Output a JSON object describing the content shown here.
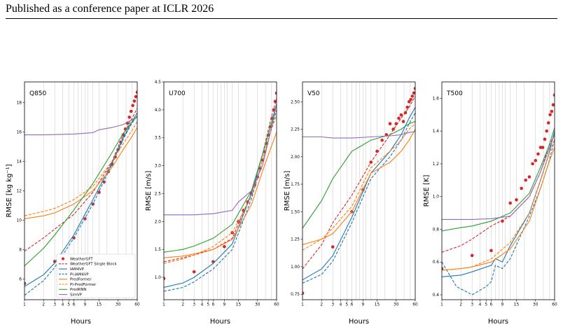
{
  "page": {
    "header": "Published as a conference paper at ICLR 2026"
  },
  "legend_entries": [
    {
      "name": "WeatherGFT",
      "color": "#d62728",
      "style": "marker"
    },
    {
      "name": "WeatherGFT Single Block",
      "color": "#d62728",
      "style": "dashed"
    },
    {
      "name": "IAM4VP",
      "color": "#1f77b4",
      "style": "solid"
    },
    {
      "name": "PI-IAM4VP",
      "color": "#1f77b4",
      "style": "dashed"
    },
    {
      "name": "PredFormer",
      "color": "#ff7f0e",
      "style": "solid"
    },
    {
      "name": "PI-PredFormer",
      "color": "#ff7f0e",
      "style": "dashed"
    },
    {
      "name": "PredRNN",
      "color": "#2ca02c",
      "style": "solid"
    },
    {
      "name": "SimVP",
      "color": "#9467bd",
      "style": "solid"
    }
  ],
  "chart_data": [
    {
      "type": "line",
      "panel_label": "Q850",
      "xlabel": "Hours",
      "ylabel": "RMSE [kg kg$^{-1}$]",
      "ylabel_display": "RMSE [kg kg⁻¹]",
      "x_scale": "log",
      "xlim": [
        1,
        60
      ],
      "ylim": [
        4.6,
        19.4
      ],
      "xticks": [
        1,
        2,
        3,
        4,
        5,
        6,
        9,
        15,
        30,
        60
      ],
      "yticks": [
        6,
        8,
        10,
        12,
        14,
        16,
        18
      ],
      "ytick_labels": [
        "6",
        "8",
        "10",
        "12",
        "14",
        "16",
        "18"
      ],
      "grid": "vertical",
      "legend": "lower-right",
      "series": [
        {
          "name": "WeatherGFT",
          "x": [
            1,
            3,
            6,
            9,
            12,
            15,
            18,
            21,
            24,
            27,
            30,
            33,
            36,
            39,
            42,
            45,
            48,
            51,
            54,
            57,
            60
          ],
          "values": [
            5.7,
            7.2,
            8.8,
            10.1,
            11.1,
            11.9,
            12.6,
            13.3,
            13.8,
            14.3,
            14.8,
            15.3,
            15.8,
            16.2,
            16.6,
            17.0,
            17.4,
            17.8,
            18.1,
            18.4,
            18.7
          ]
        },
        {
          "name": "WeatherGFT Single Block",
          "x": [
            1,
            2,
            3,
            6,
            12,
            24,
            36,
            48,
            60
          ],
          "values": [
            7.9,
            8.8,
            9.4,
            10.4,
            11.9,
            14.0,
            15.8,
            16.8,
            17.6
          ]
        },
        {
          "name": "IAM4VP",
          "x": [
            1,
            2,
            3,
            6,
            12,
            24,
            36,
            48,
            60
          ],
          "values": [
            5.5,
            6.3,
            7.1,
            9.0,
            11.4,
            13.9,
            15.6,
            16.6,
            17.3
          ]
        },
        {
          "name": "PI-IAM4VP",
          "x": [
            1,
            2,
            3,
            6,
            12,
            24,
            36,
            48,
            60
          ],
          "values": [
            4.9,
            5.9,
            6.8,
            8.8,
            11.1,
            13.8,
            15.5,
            16.5,
            17.1
          ]
        },
        {
          "name": "PredFormer",
          "x": [
            1,
            2,
            3,
            6,
            12,
            24,
            36,
            48,
            60
          ],
          "values": [
            10.1,
            10.3,
            10.5,
            11.1,
            12.0,
            13.6,
            14.8,
            15.6,
            16.3
          ]
        },
        {
          "name": "PI-PredFormer",
          "x": [
            1,
            2,
            3,
            6,
            12,
            24,
            36,
            48,
            60
          ],
          "values": [
            10.3,
            10.6,
            10.8,
            11.4,
            12.3,
            14.0,
            15.2,
            16.0,
            16.7
          ]
        },
        {
          "name": "PredRNN",
          "x": [
            1,
            2,
            3,
            6,
            12,
            24,
            36,
            48,
            60
          ],
          "values": [
            6.9,
            8.1,
            9.0,
            10.7,
            12.5,
            14.6,
            15.9,
            16.6,
            17.1
          ]
        },
        {
          "name": "SimVP",
          "x": [
            1,
            2,
            3,
            6,
            12,
            15,
            24,
            36,
            48,
            60
          ],
          "values": [
            15.8,
            15.8,
            15.82,
            15.86,
            15.95,
            16.15,
            16.3,
            16.5,
            16.8,
            17.0
          ]
        }
      ]
    },
    {
      "type": "line",
      "panel_label": "U700",
      "xlabel": "Hours",
      "ylabel": "RMSE [m/s]",
      "x_scale": "log",
      "xlim": [
        1,
        60
      ],
      "ylim": [
        0.6,
        4.5
      ],
      "xticks": [
        1,
        2,
        3,
        4,
        5,
        6,
        9,
        15,
        30,
        60
      ],
      "yticks": [
        1.0,
        1.5,
        2.0,
        2.5,
        3.0,
        3.5,
        4.0,
        4.5
      ],
      "ytick_labels": [
        "1.0",
        "1.5",
        "2.0",
        "2.5",
        "3.0",
        "3.5",
        "4.0",
        "4.5"
      ],
      "grid": "vertical",
      "series": [
        {
          "name": "WeatherGFT",
          "x": [
            1,
            3,
            6,
            9,
            12,
            15,
            18,
            21,
            24,
            27,
            30,
            33,
            36,
            39,
            42,
            45,
            48,
            51,
            54,
            57,
            60
          ],
          "values": [
            0.98,
            1.1,
            1.28,
            1.55,
            1.8,
            2.0,
            2.2,
            2.35,
            2.5,
            2.65,
            2.8,
            2.95,
            3.1,
            3.25,
            3.4,
            3.55,
            3.7,
            3.85,
            4.0,
            4.15,
            4.3
          ]
        },
        {
          "name": "WeatherGFT Single Block",
          "x": [
            1,
            2,
            3,
            6,
            12,
            24,
            36,
            48,
            60
          ],
          "values": [
            1.28,
            1.35,
            1.4,
            1.5,
            1.7,
            2.5,
            3.2,
            3.8,
            4.2
          ]
        },
        {
          "name": "IAM4VP",
          "x": [
            1,
            2,
            3,
            6,
            12,
            24,
            36,
            48,
            60
          ],
          "values": [
            0.82,
            0.9,
            1.0,
            1.25,
            1.6,
            2.5,
            3.2,
            3.7,
            4.1
          ]
        },
        {
          "name": "PI-IAM4VP",
          "x": [
            1,
            2,
            3,
            6,
            12,
            24,
            36,
            48,
            60
          ],
          "values": [
            0.75,
            0.82,
            0.92,
            1.15,
            1.5,
            2.4,
            3.1,
            3.6,
            4.0
          ]
        },
        {
          "name": "PredFormer",
          "x": [
            1,
            2,
            3,
            6,
            12,
            24,
            36,
            48,
            60
          ],
          "values": [
            1.35,
            1.38,
            1.42,
            1.5,
            1.68,
            2.3,
            2.9,
            3.3,
            3.6
          ]
        },
        {
          "name": "PI-PredFormer",
          "x": [
            1,
            2,
            3,
            6,
            12,
            24,
            36,
            48,
            60
          ],
          "values": [
            1.25,
            1.33,
            1.4,
            1.55,
            1.8,
            2.45,
            3.1,
            3.6,
            3.9
          ]
        },
        {
          "name": "PredRNN",
          "x": [
            1,
            2,
            3,
            6,
            12,
            24,
            36,
            48,
            60
          ],
          "values": [
            1.45,
            1.5,
            1.56,
            1.7,
            1.95,
            2.55,
            3.2,
            3.7,
            4.1
          ]
        },
        {
          "name": "SimVP",
          "x": [
            1,
            2,
            3,
            6,
            12,
            15,
            24,
            36,
            48,
            60
          ],
          "values": [
            2.12,
            2.12,
            2.12,
            2.14,
            2.2,
            2.35,
            2.55,
            3.0,
            3.6,
            4.1
          ]
        }
      ]
    },
    {
      "type": "line",
      "panel_label": "V50",
      "xlabel": "Hours",
      "ylabel": "RMSE [m/s]",
      "x_scale": "log",
      "xlim": [
        1,
        60
      ],
      "ylim": [
        0.7,
        2.68
      ],
      "xticks": [
        1,
        2,
        3,
        4,
        5,
        6,
        9,
        15,
        30,
        60
      ],
      "yticks": [
        0.75,
        1.0,
        1.25,
        1.5,
        1.75,
        2.0,
        2.25,
        2.5
      ],
      "ytick_labels": [
        "0.75",
        "1.00",
        "1.25",
        "1.50",
        "1.75",
        "2.00",
        "2.25",
        "2.50"
      ],
      "grid": "vertical",
      "series": [
        {
          "name": "WeatherGFT",
          "x": [
            1,
            3,
            6,
            9,
            12,
            15,
            18,
            21,
            24,
            27,
            30,
            33,
            36,
            39,
            42,
            45,
            48,
            51,
            54,
            57,
            60
          ],
          "values": [
            0.76,
            1.18,
            1.5,
            1.7,
            1.95,
            2.05,
            2.15,
            2.2,
            2.3,
            2.25,
            2.3,
            2.35,
            2.38,
            2.32,
            2.4,
            2.45,
            2.5,
            2.52,
            2.55,
            2.58,
            2.62
          ]
        },
        {
          "name": "WeatherGFT Single Block",
          "x": [
            1,
            2,
            3,
            6,
            12,
            24,
            36,
            48,
            60
          ],
          "values": [
            0.98,
            1.2,
            1.4,
            1.65,
            1.95,
            2.2,
            2.35,
            2.45,
            2.55
          ]
        },
        {
          "name": "IAM4VP",
          "x": [
            1,
            2,
            3,
            6,
            12,
            24,
            36,
            48,
            60
          ],
          "values": [
            0.88,
            0.98,
            1.1,
            1.45,
            1.85,
            2.05,
            2.2,
            2.35,
            2.45
          ]
        },
        {
          "name": "PI-IAM4VP",
          "x": [
            1,
            2,
            3,
            6,
            12,
            24,
            36,
            48,
            60
          ],
          "values": [
            0.85,
            0.93,
            1.05,
            1.4,
            1.8,
            2.0,
            2.15,
            2.3,
            2.4
          ]
        },
        {
          "name": "PredFormer",
          "x": [
            1,
            2,
            3,
            6,
            12,
            24,
            36,
            48,
            60
          ],
          "values": [
            1.2,
            1.25,
            1.3,
            1.5,
            1.85,
            1.95,
            2.05,
            2.15,
            2.25
          ]
        },
        {
          "name": "PI-PredFormer",
          "x": [
            1,
            2,
            3,
            6,
            12,
            24,
            36,
            48,
            60
          ],
          "values": [
            1.15,
            1.25,
            1.35,
            1.55,
            1.9,
            2.05,
            2.15,
            2.25,
            2.3
          ]
        },
        {
          "name": "PredRNN",
          "x": [
            1,
            2,
            3,
            6,
            12,
            24,
            36,
            48,
            60
          ],
          "values": [
            1.35,
            1.6,
            1.8,
            2.05,
            2.15,
            2.2,
            2.25,
            2.3,
            2.32
          ]
        },
        {
          "name": "SimVP",
          "x": [
            1,
            2,
            3,
            6,
            12,
            24,
            36,
            48,
            60
          ],
          "values": [
            2.18,
            2.18,
            2.17,
            2.17,
            2.18,
            2.19,
            2.2,
            2.22,
            2.23
          ]
        }
      ]
    },
    {
      "type": "line",
      "panel_label": "T500",
      "xlabel": "Hours",
      "ylabel": "RMSE [K]",
      "x_scale": "log",
      "xlim": [
        1,
        60
      ],
      "ylim": [
        0.37,
        1.7
      ],
      "xticks": [
        1,
        2,
        3,
        4,
        5,
        6,
        9,
        15,
        30,
        60
      ],
      "yticks": [
        0.4,
        0.6,
        0.8,
        1.0,
        1.2,
        1.4,
        1.6
      ],
      "ytick_labels": [
        "0.4",
        "0.6",
        "0.8",
        "1.0",
        "1.2",
        "1.4",
        "1.6"
      ],
      "grid": "vertical",
      "series": [
        {
          "name": "WeatherGFT",
          "x": [
            1,
            3,
            6,
            9,
            12,
            15,
            18,
            21,
            24,
            27,
            30,
            33,
            36,
            39,
            42,
            45,
            48,
            51,
            54,
            57,
            60
          ],
          "values": [
            0.56,
            0.64,
            0.67,
            0.85,
            0.96,
            0.98,
            1.05,
            1.1,
            1.12,
            1.2,
            1.22,
            1.26,
            1.3,
            1.3,
            1.35,
            1.4,
            1.45,
            1.5,
            1.52,
            1.56,
            1.62
          ]
        },
        {
          "name": "WeatherGFT Single Block",
          "x": [
            1,
            2,
            3,
            6,
            12,
            24,
            36,
            48,
            60
          ],
          "values": [
            0.66,
            0.7,
            0.74,
            0.82,
            0.88,
            1.0,
            1.15,
            1.3,
            1.38
          ]
        },
        {
          "name": "IAM4VP",
          "x": [
            1,
            2,
            3,
            6,
            7,
            9,
            12,
            24,
            36,
            48,
            60
          ],
          "values": [
            0.51,
            0.52,
            0.54,
            0.58,
            0.62,
            0.6,
            0.7,
            0.9,
            1.1,
            1.25,
            1.4
          ]
        },
        {
          "name": "PI-IAM4VP",
          "x": [
            1,
            1.7,
            3,
            5,
            6,
            7,
            9,
            12,
            24,
            36,
            48,
            60
          ],
          "values": [
            0.6,
            0.45,
            0.4,
            0.45,
            0.48,
            0.58,
            0.56,
            0.62,
            0.88,
            1.05,
            1.2,
            1.35
          ]
        },
        {
          "name": "PredFormer",
          "x": [
            1,
            2,
            3,
            6,
            12,
            24,
            36,
            48,
            60
          ],
          "values": [
            0.55,
            0.56,
            0.57,
            0.6,
            0.68,
            0.85,
            1.05,
            1.2,
            1.3
          ]
        },
        {
          "name": "PI-PredFormer",
          "x": [
            1,
            2,
            3,
            6,
            12,
            24,
            36,
            48,
            60
          ],
          "values": [
            0.55,
            0.56,
            0.57,
            0.62,
            0.72,
            0.9,
            1.1,
            1.25,
            1.35
          ]
        },
        {
          "name": "PredRNN",
          "x": [
            1,
            2,
            3,
            6,
            12,
            24,
            36,
            48,
            60
          ],
          "values": [
            0.79,
            0.81,
            0.82,
            0.85,
            0.9,
            1.02,
            1.18,
            1.3,
            1.42
          ]
        },
        {
          "name": "SimVP",
          "x": [
            1,
            2,
            3,
            6,
            12,
            24,
            36,
            48,
            60
          ],
          "values": [
            0.86,
            0.86,
            0.86,
            0.865,
            0.88,
            1.0,
            1.15,
            1.28,
            1.38
          ]
        }
      ]
    }
  ]
}
